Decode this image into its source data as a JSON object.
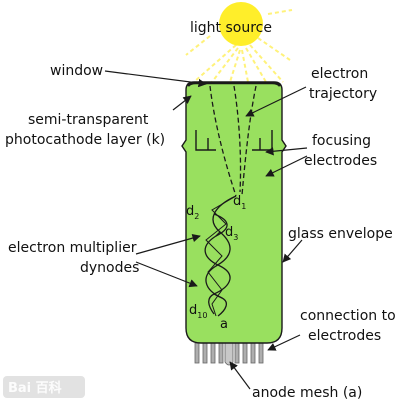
{
  "labels": {
    "light_source": "light  source",
    "window": "window",
    "photocathode_line1": "semi-transparent",
    "photocathode_line2": "photocathode layer (k)",
    "trajectory_line1": "electron",
    "trajectory_line2": "trajectory",
    "focusing_line1": "focusing",
    "focusing_line2": "electrodes",
    "glass_envelope": "glass envelope",
    "multiplier_line1": "electron multiplier",
    "multiplier_line2": "dynodes",
    "connection_line1": "connection to",
    "connection_line2": "electrodes",
    "anode_mesh": "anode mesh (a)"
  },
  "dynodes": {
    "d1_main": "d",
    "d1_sub": "1",
    "d2_main": "d",
    "d2_sub": "2",
    "d3_main": "d",
    "d3_sub": "3",
    "d10_main": "d",
    "d10_sub": "10",
    "a": "a"
  },
  "watermark": "Bai 百科",
  "colors": {
    "tube_fill": "#99e05f",
    "sun_fill": "#ffee2a",
    "ray_color": "#fff27a",
    "line_color": "#1a1a1a"
  }
}
